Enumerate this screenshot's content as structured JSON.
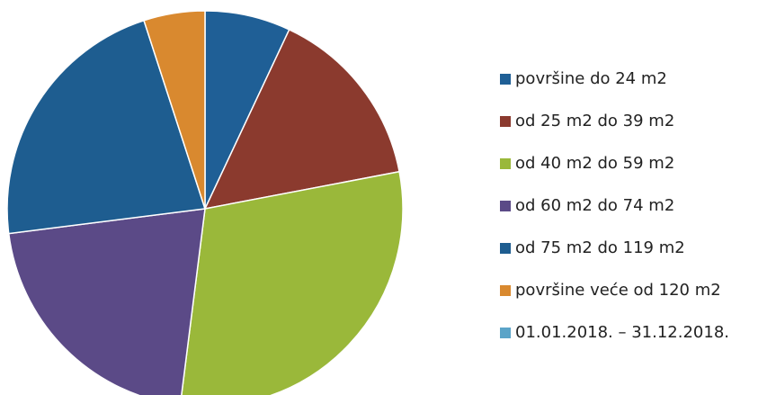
{
  "chart_data": {
    "type": "pie",
    "categories": [
      "površine do 24 m2",
      "od 25 m2 do 39 m2",
      "od 40 m2 do 59 m2",
      "od 60 m2 do 74 m2",
      "od 75 m2 do 119 m2",
      "površine veće od 120 m2"
    ],
    "values": [
      7,
      15,
      30,
      21,
      22,
      5
    ],
    "colors": [
      "#1f5f96",
      "#8b3a2e",
      "#9ab83a",
      "#5b4a87",
      "#1e5d90",
      "#d9892f"
    ],
    "series_name": "01.01.2018. – 31.12.2018.",
    "series_color": "#5ba4c8",
    "legend": "right"
  }
}
